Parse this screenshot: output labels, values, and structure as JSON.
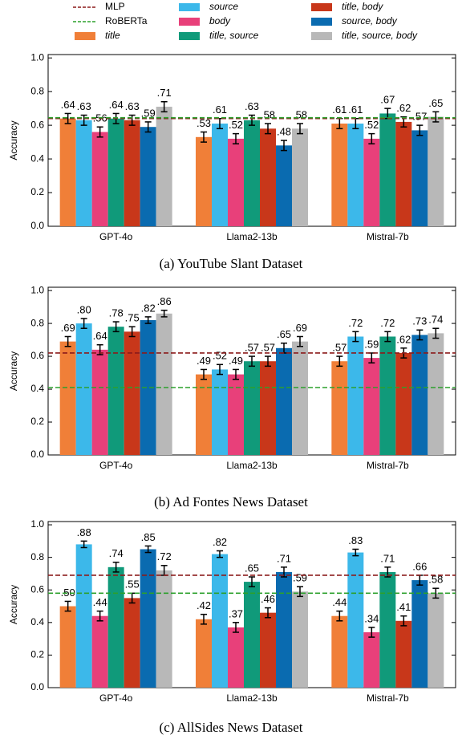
{
  "legend": {
    "lines": [
      {
        "name": "MLP",
        "color": "#8b1a1a"
      },
      {
        "name": "RoBERTa",
        "color": "#2ca02c"
      }
    ],
    "series": [
      {
        "name": "title",
        "color": "#f07f38"
      },
      {
        "name": "source",
        "color": "#3cb8ea"
      },
      {
        "name": "body",
        "color": "#e8407a"
      },
      {
        "name": "title, source",
        "color": "#109a7a"
      },
      {
        "name": "title, body",
        "color": "#c8371a"
      },
      {
        "name": "source, body",
        "color": "#0a6bb0"
      },
      {
        "name": "title, source, body",
        "color": "#b8b8b8"
      }
    ]
  },
  "chart_data": [
    {
      "type": "bar",
      "caption": "(a) YouTube Slant Dataset",
      "y_label": "Accuracy",
      "categories": [
        "GPT-4o",
        "Llama2-13b",
        "Mistral-7b"
      ],
      "ylim": [
        0,
        1.02
      ],
      "yticks": [
        {
          "value": 0,
          "label": "0.0"
        },
        0.2,
        0.4,
        0.6,
        0.8,
        {
          "value": 1,
          "label": "1.0"
        }
      ],
      "reference_lines": [
        0.64,
        0.645
      ],
      "series": [
        {
          "values": [
            0.64,
            0.53,
            0.61
          ],
          "value_labels": [
            ".64",
            ".53",
            ".61"
          ],
          "errors": [
            0.03,
            0.03,
            0.03
          ]
        },
        {
          "values": [
            0.63,
            0.61,
            0.61
          ],
          "value_labels": [
            ".63",
            ".61",
            ".61"
          ],
          "errors": [
            0.03,
            0.03,
            0.03
          ]
        },
        {
          "values": [
            0.56,
            0.52,
            0.52
          ],
          "value_labels": [
            ".56",
            ".52",
            ".52"
          ],
          "errors": [
            0.03,
            0.03,
            0.03
          ]
        },
        {
          "values": [
            0.64,
            0.63,
            0.67
          ],
          "value_labels": [
            ".64",
            ".63",
            ".67"
          ],
          "errors": [
            0.03,
            0.03,
            0.03
          ]
        },
        {
          "values": [
            0.63,
            0.58,
            0.62
          ],
          "value_labels": [
            ".63",
            ".58",
            ".62"
          ],
          "errors": [
            0.03,
            0.03,
            0.03
          ]
        },
        {
          "values": [
            0.59,
            0.48,
            0.57
          ],
          "value_labels": [
            ".59",
            ".48",
            ".57"
          ],
          "errors": [
            0.03,
            0.03,
            0.03
          ]
        },
        {
          "values": [
            0.71,
            0.58,
            0.65
          ],
          "value_labels": [
            ".71",
            ".58",
            ".65"
          ],
          "errors": [
            0.03,
            0.03,
            0.03
          ]
        }
      ]
    },
    {
      "type": "bar",
      "caption": "(b) Ad Fontes News Dataset",
      "y_label": "Accuracy",
      "categories": [
        "GPT-4o",
        "Llama2-13b",
        "Mistral-7b"
      ],
      "ylim": [
        0,
        1.02
      ],
      "yticks": [
        {
          "value": 0,
          "label": "0.0"
        },
        0.2,
        0.4,
        0.6,
        0.8,
        {
          "value": 1,
          "label": "1.0"
        }
      ],
      "reference_lines": [
        0.62,
        0.41
      ],
      "series": [
        {
          "values": [
            0.69,
            0.49,
            0.57
          ],
          "value_labels": [
            ".69",
            ".49",
            ".57"
          ],
          "errors": [
            0.03,
            0.03,
            0.03
          ]
        },
        {
          "values": [
            0.8,
            0.52,
            0.72
          ],
          "value_labels": [
            ".80",
            ".52",
            ".72"
          ],
          "errors": [
            0.03,
            0.03,
            0.03
          ]
        },
        {
          "values": [
            0.64,
            0.49,
            0.59
          ],
          "value_labels": [
            ".64",
            ".49",
            ".59"
          ],
          "errors": [
            0.03,
            0.03,
            0.03
          ]
        },
        {
          "values": [
            0.78,
            0.57,
            0.72
          ],
          "value_labels": [
            ".78",
            ".57",
            ".72"
          ],
          "errors": [
            0.03,
            0.03,
            0.03
          ]
        },
        {
          "values": [
            0.75,
            0.57,
            0.62
          ],
          "value_labels": [
            ".75",
            ".57",
            ".62"
          ],
          "errors": [
            0.03,
            0.03,
            0.03
          ]
        },
        {
          "values": [
            0.82,
            0.65,
            0.73
          ],
          "value_labels": [
            ".82",
            ".65",
            ".73"
          ],
          "errors": [
            0.02,
            0.03,
            0.03
          ]
        },
        {
          "values": [
            0.86,
            0.69,
            0.74
          ],
          "value_labels": [
            ".86",
            ".69",
            ".74"
          ],
          "errors": [
            0.02,
            0.03,
            0.03
          ]
        }
      ]
    },
    {
      "type": "bar",
      "caption": "(c) AllSides News Dataset",
      "y_label": "Accuracy",
      "categories": [
        "GPT-4o",
        "Llama2-13b",
        "Mistral-7b"
      ],
      "ylim": [
        0,
        1.02
      ],
      "yticks": [
        {
          "value": 0,
          "label": "0.0"
        },
        0.2,
        0.4,
        0.6,
        0.8,
        {
          "value": 1,
          "label": "1.0"
        }
      ],
      "reference_lines": [
        0.69,
        0.58
      ],
      "series": [
        {
          "values": [
            0.5,
            0.42,
            0.44
          ],
          "value_labels": [
            ".50",
            ".42",
            ".44"
          ],
          "errors": [
            0.03,
            0.03,
            0.03
          ]
        },
        {
          "values": [
            0.88,
            0.82,
            0.83
          ],
          "value_labels": [
            ".88",
            ".82",
            ".83"
          ],
          "errors": [
            0.02,
            0.02,
            0.02
          ]
        },
        {
          "values": [
            0.44,
            0.37,
            0.34
          ],
          "value_labels": [
            ".44",
            ".37",
            ".34"
          ],
          "errors": [
            0.03,
            0.03,
            0.03
          ]
        },
        {
          "values": [
            0.74,
            0.65,
            0.71
          ],
          "value_labels": [
            ".74",
            ".65",
            ".71"
          ],
          "errors": [
            0.03,
            0.03,
            0.03
          ]
        },
        {
          "values": [
            0.55,
            0.46,
            0.41
          ],
          "value_labels": [
            ".55",
            ".46",
            ".41"
          ],
          "errors": [
            0.03,
            0.03,
            0.03
          ]
        },
        {
          "values": [
            0.85,
            0.71,
            0.66
          ],
          "value_labels": [
            ".85",
            ".71",
            ".66"
          ],
          "errors": [
            0.02,
            0.03,
            0.03
          ]
        },
        {
          "values": [
            0.72,
            0.59,
            0.58
          ],
          "value_labels": [
            ".72",
            ".59",
            ".58"
          ],
          "errors": [
            0.03,
            0.03,
            0.03
          ]
        }
      ]
    }
  ]
}
